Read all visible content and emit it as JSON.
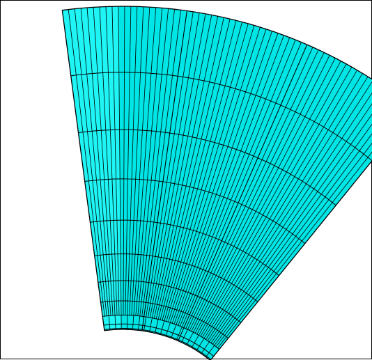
{
  "mesh": {
    "shape": "annular-sector",
    "colors": {
      "fill": "#00e6e6",
      "fill_light": "#1ff5f5",
      "line": "#000000",
      "background": "#ffffff",
      "frame": "#000000"
    },
    "radial_divisions": 11,
    "angular_divisions_fine": 60,
    "angular_divisions_coarse": 3
  }
}
